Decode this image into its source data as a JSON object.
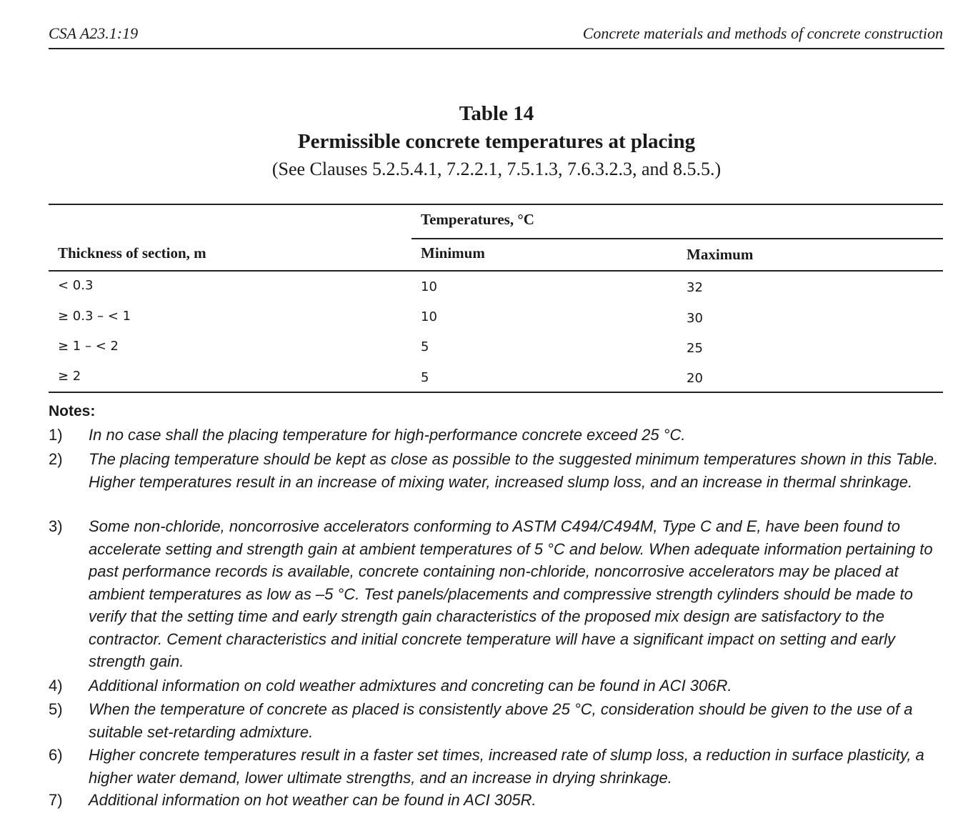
{
  "header": {
    "left": "CSA A23.1:19",
    "right": "Concrete materials and methods of concrete construction"
  },
  "table": {
    "number": "Table 14",
    "title": "Permissible concrete temperatures at placing",
    "clauses": "(See Clauses 5.2.5.4.1, 7.2.2.1, 7.5.1.3, 7.6.3.2.3, and 8.5.5.)",
    "group_header": "Temperatures, °C",
    "columns": [
      "Thickness of section, m",
      "Minimum",
      "Maximum"
    ],
    "rows": [
      [
        "< 0.3",
        "10",
        "32"
      ],
      [
        "≥ 0.3 – < 1",
        "10",
        "30"
      ],
      [
        "≥ 1 – < 2",
        "5",
        "25"
      ],
      [
        "≥ 2",
        "5",
        "20"
      ]
    ]
  },
  "notes": {
    "heading": "Notes:",
    "items": [
      {
        "num": "1)",
        "text": "In no case shall the placing temperature for high-performance concrete exceed 25 °C."
      },
      {
        "num": "2)",
        "text": "The placing temperature should be kept as close as possible to the suggested minimum temperatures shown in this Table. Higher temperatures result in an increase of mixing water, increased slump loss, and an increase in thermal shrinkage."
      },
      {
        "num": "3)",
        "text": "Some non-chloride, noncorrosive accelerators conforming to ASTM C494/C494M, Type C and E, have been found to accelerate setting and strength gain at ambient temperatures of 5 °C and below. When adequate information pertaining to past performance records is available, concrete containing non-chloride, noncorrosive accelerators may be placed at ambient temperatures as low as –5 °C. Test panels/placements and compressive strength cylinders should be made to verify that the setting time and early strength gain characteristics of the proposed mix design are satisfactory to the contractor. Cement characteristics and initial concrete temperature will have a significant impact on setting and early strength gain."
      },
      {
        "num": "4)",
        "text": "Additional information on cold weather admixtures and concreting can be found in ACI 306R."
      },
      {
        "num": "5)",
        "text": "When the temperature of concrete as placed is consistently above 25 °C, consideration should be given to the use of a suitable set-retarding admixture."
      },
      {
        "num": "6)",
        "text": "Higher concrete temperatures result in a faster set times, increased rate of slump loss, a reduction in surface plasticity, a higher water demand, lower ultimate strengths, and an increase in drying shrinkage."
      },
      {
        "num": "7)",
        "text": "Additional information on hot weather can be found in ACI 305R."
      }
    ]
  }
}
